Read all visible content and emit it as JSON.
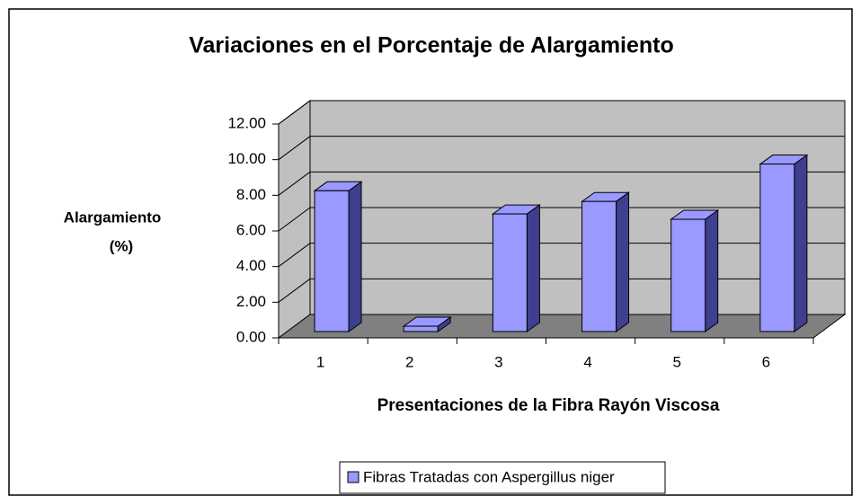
{
  "chart_data": {
    "type": "bar3d",
    "title": "Variaciones en el Porcentaje de Alargamiento",
    "y_label": [
      "Alargamiento",
      "(%)"
    ],
    "x_label": "Presentaciones de la Fibra Rayón Viscosa",
    "categories": [
      "1",
      "2",
      "3",
      "4",
      "5",
      "6"
    ],
    "series": [
      {
        "name": "Fibras Tratadas con Aspergillus niger",
        "color": "#9999ff",
        "side_color": "#3f3f8f",
        "values": [
          7.9,
          0.3,
          6.6,
          7.3,
          6.3,
          9.4
        ]
      }
    ],
    "ylim": [
      0,
      12
    ],
    "yticks": [
      {
        "value": 0,
        "label": "0.00"
      },
      {
        "value": 2,
        "label": "2.00"
      },
      {
        "value": 4,
        "label": "4.00"
      },
      {
        "value": 6,
        "label": "6.00"
      },
      {
        "value": 8,
        "label": "8.00"
      },
      {
        "value": 10,
        "label": "10.00"
      },
      {
        "value": 12,
        "label": "12.00"
      }
    ],
    "grid": true
  }
}
